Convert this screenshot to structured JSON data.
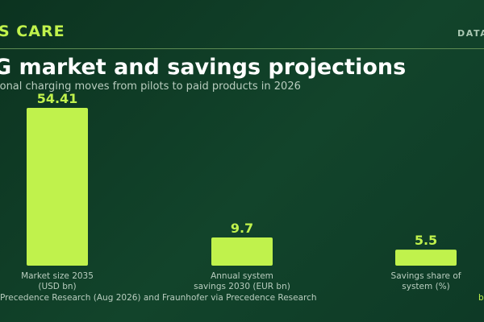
{
  "header": {
    "brand": "S CARE",
    "tag": "DATA",
    "title": "G market and savings projections",
    "subtitle": "ional charging moves from pilots to paid products in 2026"
  },
  "footer": {
    "source": "Precedence Research (Aug 2026) and Fraunhofer via Precedence Research",
    "byline": "b"
  },
  "colors": {
    "accent": "#c0f24c",
    "background": "#0f3d26"
  },
  "chart_data": {
    "type": "bar",
    "categories": [
      [
        "Market size 2035",
        "(USD bn)"
      ],
      [
        "Annual system",
        "savings 2030 (EUR bn)"
      ],
      [
        "Savings share of",
        "system (%)"
      ]
    ],
    "values": [
      54.41,
      9.7,
      5.5
    ],
    "value_labels": [
      "54.41",
      "9.7",
      "5.5"
    ],
    "ylim": [
      0,
      54.41
    ]
  }
}
